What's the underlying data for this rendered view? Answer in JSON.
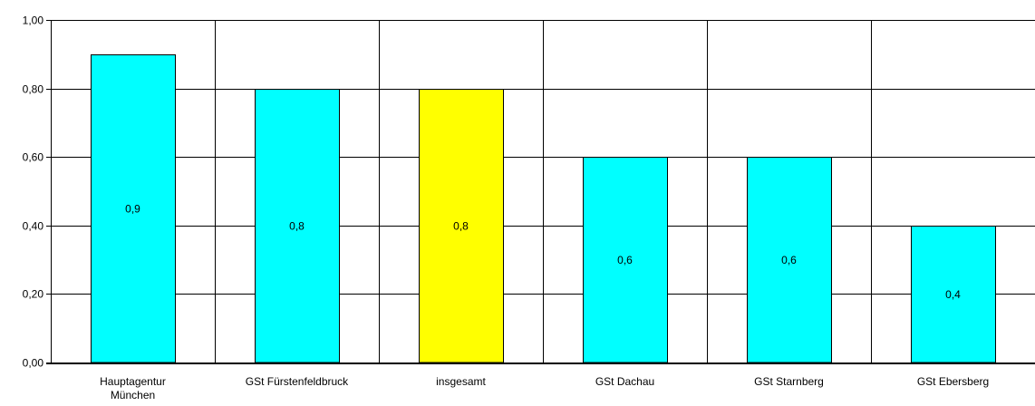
{
  "chart_data": {
    "type": "bar",
    "categories": [
      [
        "Hauptagentur",
        "München"
      ],
      [
        "GSt Fürstenfeldbruck"
      ],
      [
        "insgesamt"
      ],
      [
        "GSt Dachau"
      ],
      [
        "GSt Starnberg"
      ],
      [
        "GSt Ebersberg"
      ]
    ],
    "values": [
      0.9,
      0.8,
      0.8,
      0.6,
      0.6,
      0.4
    ],
    "data_labels": [
      "0,9",
      "0,8",
      "0,8",
      "0,6",
      "0,6",
      "0,4"
    ],
    "bar_colors": [
      "#00ffff",
      "#00ffff",
      "#ffff00",
      "#00ffff",
      "#00ffff",
      "#00ffff"
    ],
    "ylim": [
      0,
      1
    ],
    "y_ticks": [
      0,
      0.2,
      0.4,
      0.6,
      0.8,
      1.0
    ],
    "y_tick_labels": [
      "0,00",
      "0,20",
      "0,40",
      "0,60",
      "0,80",
      "1,00"
    ],
    "grid": {
      "horizontal": true,
      "vertical": true
    },
    "title": "",
    "xlabel": "",
    "ylabel": ""
  }
}
